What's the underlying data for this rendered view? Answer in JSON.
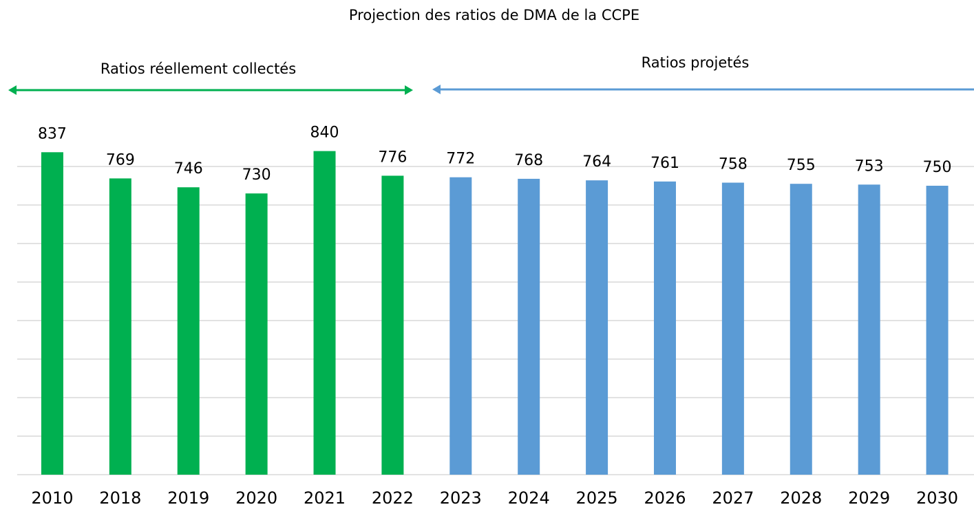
{
  "chart_data": {
    "type": "bar",
    "title": "Projection des ratios de DMA de la CCPE",
    "categories": [
      "2010",
      "2018",
      "2019",
      "2020",
      "2021",
      "2022",
      "2023",
      "2024",
      "2025",
      "2026",
      "2027",
      "2028",
      "2029",
      "2030"
    ],
    "values": [
      837,
      769,
      746,
      730,
      840,
      776,
      772,
      768,
      764,
      761,
      758,
      755,
      753,
      750
    ],
    "colors": [
      "#00b050",
      "#00b050",
      "#00b050",
      "#00b050",
      "#00b050",
      "#00b050",
      "#5b9bd5",
      "#5b9bd5",
      "#5b9bd5",
      "#5b9bd5",
      "#5b9bd5",
      "#5b9bd5",
      "#5b9bd5",
      "#5b9bd5"
    ],
    "annotations": [
      {
        "text": "Ratios réellement collectés",
        "color": "#00b050"
      },
      {
        "text": "Ratios projetés",
        "color": "#5b9bd5"
      }
    ],
    "ylim": [
      0,
      900
    ],
    "yticks": [
      0,
      100,
      200,
      300,
      400,
      500,
      600,
      700,
      800
    ],
    "grid": true
  }
}
